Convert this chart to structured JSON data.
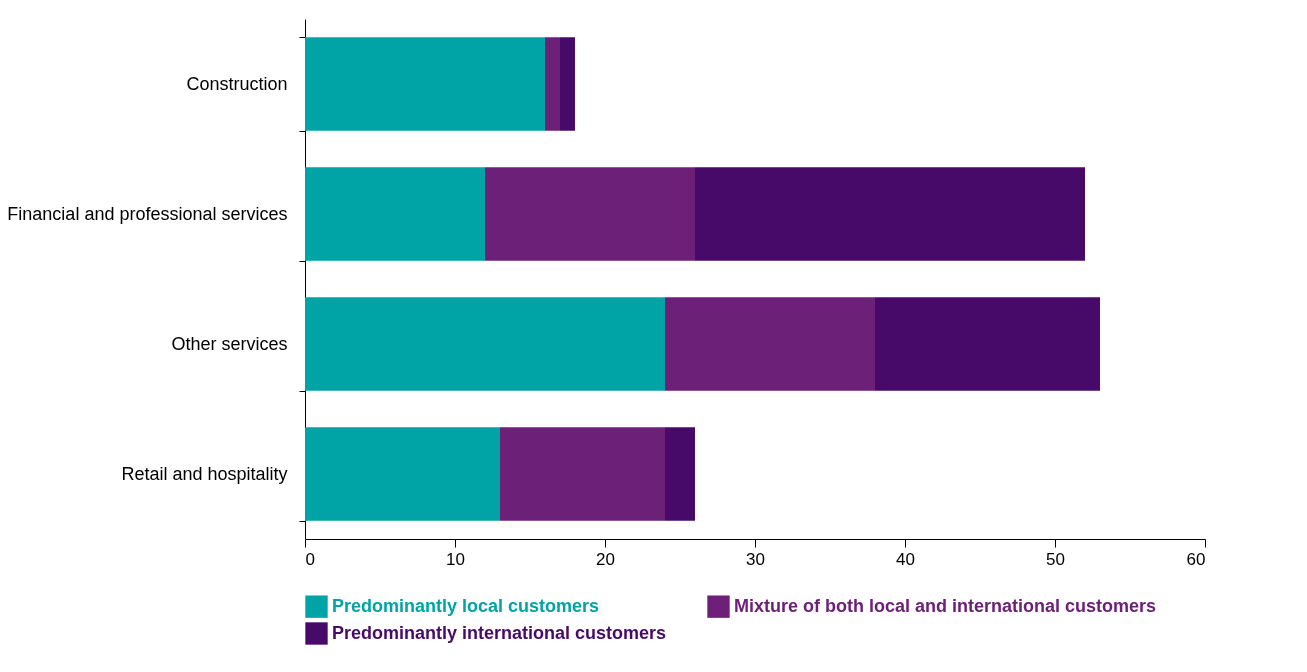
{
  "chart_data": {
    "type": "bar",
    "orientation": "horizontal",
    "stacked": true,
    "categories": [
      "Construction",
      "Financial and professional services",
      "Other services",
      "Retail and hospitality"
    ],
    "series": [
      {
        "name": "Predominantly local customers",
        "color": "#00a4a6",
        "values": [
          16,
          12,
          24,
          13
        ]
      },
      {
        "name": "Mixture of both local and international customers",
        "color": "#6d2077",
        "values": [
          1,
          14,
          14,
          11
        ]
      },
      {
        "name": "Predominantly international customers",
        "color": "#470a68",
        "values": [
          1,
          26,
          15,
          2
        ]
      }
    ],
    "xlim": [
      0,
      60
    ],
    "xticks": [
      0,
      10,
      20,
      30,
      40,
      50,
      60
    ],
    "grid": false,
    "legend": "bottom"
  }
}
